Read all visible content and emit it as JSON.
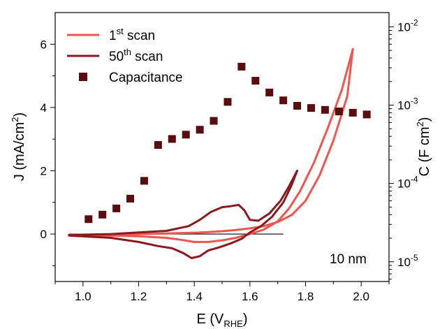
{
  "chart_data": {
    "type": "line",
    "x_axis": {
      "title": "E (V",
      "title_sub": "RHE",
      "title_close": ")",
      "range": [
        0.9,
        2.1
      ],
      "ticks": [
        1.0,
        1.2,
        1.4,
        1.6,
        1.8,
        2.0
      ],
      "tick_labels": [
        "1.0",
        "1.2",
        "1.4",
        "1.6",
        "1.8",
        "2.0"
      ],
      "minor_ticks": [
        0.9,
        1.1,
        1.3,
        1.5,
        1.7,
        1.9,
        2.1
      ]
    },
    "y_left": {
      "title": "J (mA/cm",
      "title_sup": "2",
      "title_close": ")",
      "range": [
        -1.5,
        7.0
      ],
      "ticks": [
        0,
        2,
        4,
        6
      ],
      "tick_labels": [
        "0",
        "2",
        "4",
        "6"
      ],
      "minor_ticks": [
        -1,
        1,
        3,
        5
      ]
    },
    "y_right": {
      "title": "C (F cm",
      "title_sup": "2",
      "title_close": ")",
      "scale": "log",
      "range": [
        5.6e-06,
        0.0152
      ],
      "ticks": [
        1e-05,
        0.0001,
        0.001,
        0.01
      ],
      "tick_labels": [
        {
          "base": "10",
          "exp": "-5"
        },
        {
          "base": "10",
          "exp": "-4"
        },
        {
          "base": "10",
          "exp": "-3"
        },
        {
          "base": "10",
          "exp": "-2"
        }
      ]
    },
    "legend": {
      "placement": "top-left",
      "entries": [
        {
          "label": "1",
          "sup": "st",
          "tail": " scan",
          "color": "#f0564f",
          "kind": "line"
        },
        {
          "label": "50",
          "sup": "th",
          "tail": " scan",
          "color": "#8b1a1f",
          "kind": "line"
        },
        {
          "label": "Capacitance",
          "sup": "",
          "tail": "",
          "color": "#5a0c0f",
          "kind": "square"
        }
      ]
    },
    "annotation": "10 nm",
    "zero_line": {
      "x_start": 0.95,
      "x_end": 1.72,
      "y": 0
    },
    "series": [
      {
        "name": "1st scan",
        "axis": "left",
        "color": "#f0564f",
        "x": [
          0.95,
          1.1,
          1.2,
          1.3,
          1.4,
          1.45,
          1.5,
          1.55,
          1.6,
          1.65,
          1.7,
          1.75,
          1.8,
          1.85,
          1.9,
          1.95,
          1.97,
          1.93,
          1.88,
          1.83,
          1.78,
          1.74,
          1.7,
          1.65,
          1.6,
          1.55,
          1.5,
          1.45,
          1.4,
          1.35,
          1.3,
          1.2,
          1.1,
          0.95
        ],
        "y": [
          -0.03,
          -0.02,
          0.0,
          0.02,
          0.04,
          0.06,
          0.09,
          0.13,
          0.18,
          0.25,
          0.38,
          0.6,
          1.05,
          1.85,
          2.95,
          4.35,
          5.85,
          4.55,
          3.35,
          2.25,
          1.35,
          0.8,
          0.4,
          0.14,
          0.0,
          -0.12,
          -0.2,
          -0.25,
          -0.25,
          -0.18,
          -0.12,
          -0.07,
          -0.05,
          -0.03
        ]
      },
      {
        "name": "50th scan",
        "axis": "left",
        "color": "#8b1a1f",
        "x": [
          0.95,
          1.1,
          1.2,
          1.3,
          1.38,
          1.42,
          1.46,
          1.5,
          1.53,
          1.56,
          1.58,
          1.6,
          1.63,
          1.67,
          1.71,
          1.74,
          1.77,
          1.75,
          1.72,
          1.68,
          1.64,
          1.6,
          1.57,
          1.53,
          1.49,
          1.45,
          1.42,
          1.39,
          1.36,
          1.32,
          1.27,
          1.2,
          1.1,
          0.95
        ],
        "y": [
          -0.03,
          0.0,
          0.05,
          0.1,
          0.25,
          0.45,
          0.7,
          0.85,
          0.88,
          0.92,
          0.75,
          0.45,
          0.42,
          0.65,
          1.05,
          1.5,
          2.0,
          1.55,
          1.0,
          0.55,
          0.25,
          0.05,
          -0.15,
          -0.3,
          -0.42,
          -0.52,
          -0.7,
          -0.76,
          -0.6,
          -0.45,
          -0.38,
          -0.25,
          -0.12,
          -0.05
        ]
      },
      {
        "name": "Capacitance",
        "axis": "right",
        "type": "scatter",
        "color": "#5a0c0f",
        "x": [
          1.02,
          1.07,
          1.12,
          1.17,
          1.22,
          1.27,
          1.32,
          1.37,
          1.42,
          1.47,
          1.52,
          1.57,
          1.62,
          1.67,
          1.72,
          1.77,
          1.82,
          1.87,
          1.92,
          1.97,
          2.02
        ],
        "y": [
          3.5e-05,
          4e-05,
          4.8e-05,
          6.4e-05,
          0.000108,
          0.00031,
          0.00037,
          0.00042,
          0.000485,
          0.00063,
          0.0011,
          0.0031,
          0.00205,
          0.00145,
          0.00115,
          0.00098,
          0.00092,
          0.00087,
          0.00083,
          0.0008,
          0.00076
        ]
      }
    ]
  }
}
